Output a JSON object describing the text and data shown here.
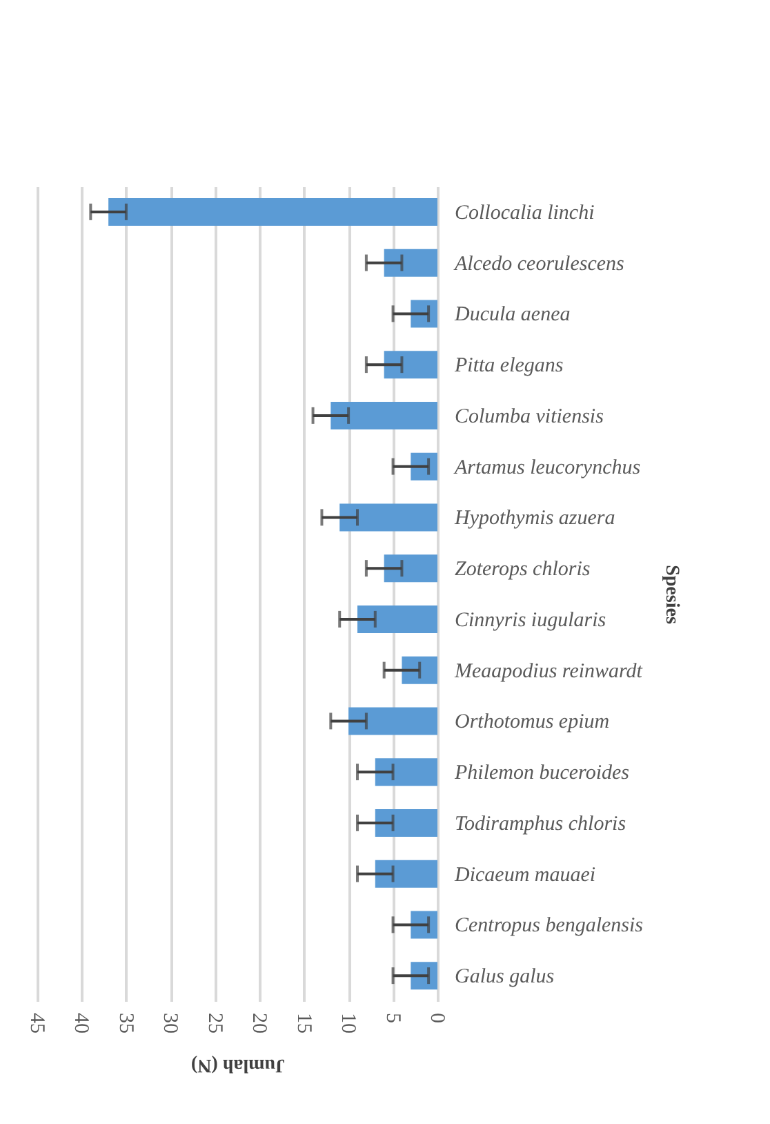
{
  "chart_data": {
    "type": "bar",
    "orientation": "horizontal",
    "xlabel": "Jumlah (N)",
    "ylabel": "Spesies",
    "categories": [
      "Collocalia linchi",
      "Alcedo ceorulescens",
      "Ducula aenea",
      "Pitta elegans",
      "Columba vitiensis",
      "Artamus leucorynchus",
      "Hypothymis azuera",
      "Zoterops chloris",
      "Cinnyris iugularis",
      "Meaapodius reinwardt",
      "Orthotomus epium",
      "Philemon buceroides",
      "Todiramphus chloris",
      "Dicaeum mauaei",
      "Centropus bengalensis",
      "Galus  galus"
    ],
    "values": [
      37,
      6,
      3,
      6,
      12,
      3,
      11,
      6,
      9,
      4,
      10,
      7,
      7,
      7,
      3,
      3
    ],
    "errors": [
      2,
      2,
      2,
      2,
      2,
      2,
      2,
      2,
      2,
      2,
      2,
      2,
      2,
      2,
      2,
      2
    ],
    "color": "#5b9bd5",
    "xlim": [
      45,
      0
    ],
    "xticks": [
      45,
      40,
      35,
      30,
      25,
      20,
      15,
      10,
      5,
      0
    ],
    "grid": "x"
  }
}
